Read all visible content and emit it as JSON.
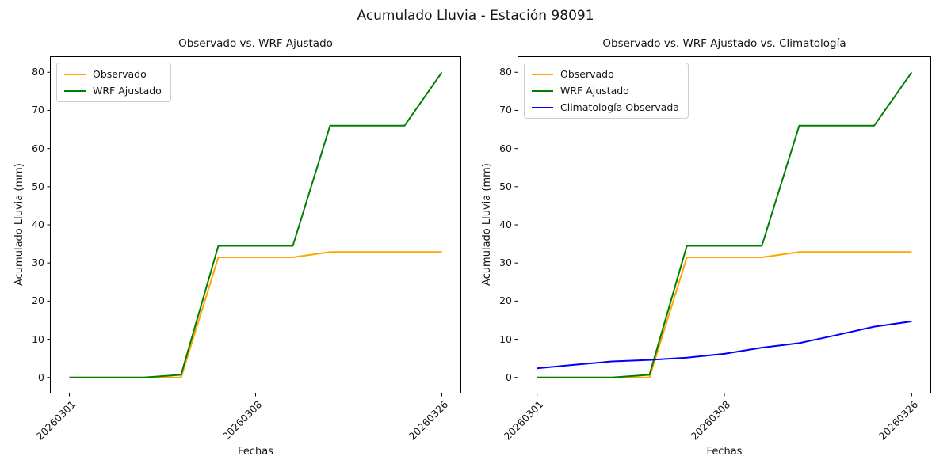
{
  "figure": {
    "title": "Acumulado Lluvia - Estación 98091",
    "background_color": "#ffffff"
  },
  "chart_data": [
    {
      "type": "line",
      "title": "Observado vs. WRF Ajustado",
      "xlabel": "Fechas",
      "ylabel": "Acumulado Lluvia (mm)",
      "grid": false,
      "legend_position": "upper-left",
      "x": [
        0,
        1,
        2,
        3,
        4,
        5,
        6,
        7,
        8,
        9,
        10
      ],
      "xlim": [
        -0.5,
        10.5
      ],
      "ylim": [
        -4,
        84
      ],
      "yticks": [
        0,
        10,
        20,
        30,
        40,
        50,
        60,
        70,
        80
      ],
      "xticks": [
        {
          "pos": 0,
          "label": "20260301"
        },
        {
          "pos": 5,
          "label": "20260308"
        },
        {
          "pos": 10,
          "label": "20260326"
        }
      ],
      "series": [
        {
          "name": "Observado",
          "color": "#FFA500",
          "values": [
            0,
            0,
            0,
            0,
            31.5,
            31.5,
            31.5,
            32.9,
            32.9,
            32.9,
            32.9
          ]
        },
        {
          "name": "WRF Ajustado",
          "color": "#008000",
          "values": [
            0,
            0,
            0,
            0.7,
            34.5,
            34.5,
            34.5,
            66,
            66,
            66,
            80
          ]
        }
      ]
    },
    {
      "type": "line",
      "title": "Observado vs. WRF Ajustado vs. Climatología",
      "xlabel": "Fechas",
      "ylabel": "Acumulado Lluvia (mm)",
      "grid": false,
      "legend_position": "upper-left",
      "x": [
        0,
        1,
        2,
        3,
        4,
        5,
        6,
        7,
        8,
        9,
        10
      ],
      "xlim": [
        -0.5,
        10.5
      ],
      "ylim": [
        -4,
        84
      ],
      "yticks": [
        0,
        10,
        20,
        30,
        40,
        50,
        60,
        70,
        80
      ],
      "xticks": [
        {
          "pos": 0,
          "label": "20260301"
        },
        {
          "pos": 5,
          "label": "20260308"
        },
        {
          "pos": 10,
          "label": "20260326"
        }
      ],
      "series": [
        {
          "name": "Observado",
          "color": "#FFA500",
          "values": [
            0,
            0,
            0,
            0,
            31.5,
            31.5,
            31.5,
            32.9,
            32.9,
            32.9,
            32.9
          ]
        },
        {
          "name": "WRF Ajustado",
          "color": "#008000",
          "values": [
            0,
            0,
            0,
            0.7,
            34.5,
            34.5,
            34.5,
            66,
            66,
            66,
            80
          ]
        },
        {
          "name": "Climatología Observada",
          "color": "#0000FF",
          "values": [
            2.4,
            3.3,
            4.2,
            4.6,
            5.2,
            6.2,
            7.8,
            9.0,
            11.1,
            13.3,
            14.7
          ]
        }
      ]
    }
  ]
}
